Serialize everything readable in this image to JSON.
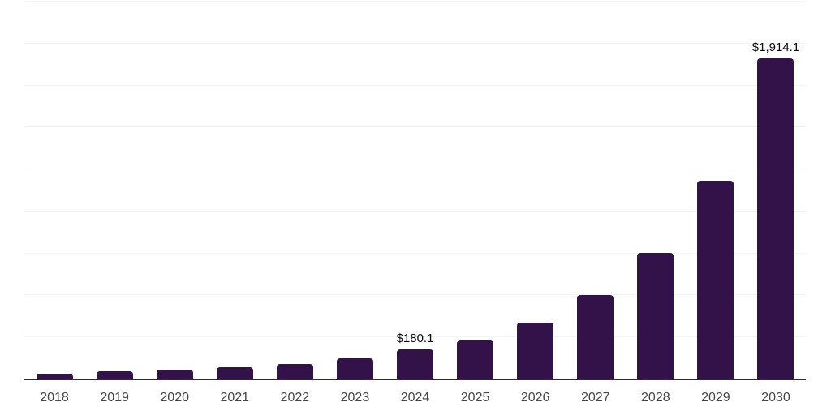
{
  "chart_data": {
    "type": "bar",
    "title": "",
    "xlabel": "",
    "ylabel": "",
    "categories": [
      "2018",
      "2019",
      "2020",
      "2021",
      "2022",
      "2023",
      "2024",
      "2025",
      "2026",
      "2027",
      "2028",
      "2029",
      "2030"
    ],
    "values": [
      32,
      46,
      58,
      72,
      92,
      125,
      180.1,
      232,
      340,
      502,
      753,
      1183,
      1914.1
    ],
    "data_labels": {
      "2024": "$180.1",
      "2030": "$1,914.1"
    },
    "ylim": [
      0,
      2250
    ],
    "gridline_step": 250,
    "grid": true,
    "y_tick_labels_visible": false,
    "legend_position": "none"
  },
  "colors": {
    "background": "#ffffff",
    "bar": "#33124a",
    "data_label": "#0a0a0a",
    "axis_label": "#454545",
    "gridline": "#f2f2f2",
    "axis_line": "#2b2b2b"
  }
}
